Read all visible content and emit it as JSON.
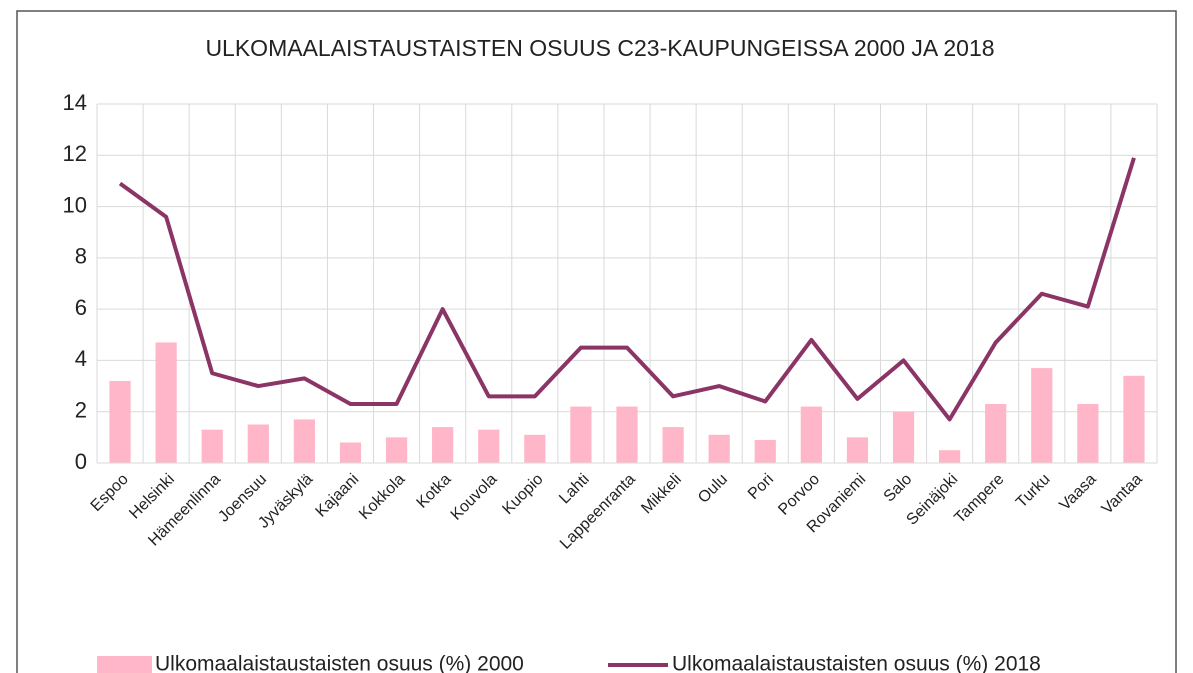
{
  "chart_data": {
    "type": "combo",
    "title": "ULKOMAALAISTAUSTAISTEN OSUUS C23-KAUPUNGEISSA 2000 JA 2018",
    "categories": [
      "Espoo",
      "Helsinki",
      "Hämeenlinna",
      "Joensuu",
      "Jyväskylä",
      "Kajaani",
      "Kokkola",
      "Kotka",
      "Kouvola",
      "Kuopio",
      "Lahti",
      "Lappeenranta",
      "Mikkeli",
      "Oulu",
      "Pori",
      "Porvoo",
      "Rovaniemi",
      "Salo",
      "Seinäjoki",
      "Tampere",
      "Turku",
      "Vaasa",
      "Vantaa"
    ],
    "series": [
      {
        "name": "Ulkomaalaistaustaisten osuus (%) 2000",
        "type": "bar",
        "color": "#ffb6c8",
        "values": [
          3.2,
          4.7,
          1.3,
          1.5,
          1.7,
          0.8,
          1.0,
          1.4,
          1.3,
          1.1,
          2.2,
          2.2,
          1.4,
          1.1,
          0.9,
          2.2,
          1.0,
          2.0,
          0.5,
          2.3,
          3.7,
          2.3,
          3.4
        ]
      },
      {
        "name": "Ulkomaalaistaustaisten osuus (%) 2018",
        "type": "line",
        "color": "#8b3466",
        "values": [
          10.9,
          9.6,
          3.5,
          3.0,
          3.3,
          2.3,
          2.3,
          6.0,
          2.6,
          2.6,
          4.5,
          4.5,
          2.6,
          3.0,
          2.4,
          4.8,
          2.5,
          4.0,
          1.7,
          4.7,
          6.6,
          6.1,
          11.9
        ]
      }
    ],
    "ylim": [
      0,
      14
    ],
    "yticks": [
      0,
      2,
      4,
      6,
      8,
      10,
      12,
      14
    ],
    "grid": true,
    "legend": "bottom"
  }
}
